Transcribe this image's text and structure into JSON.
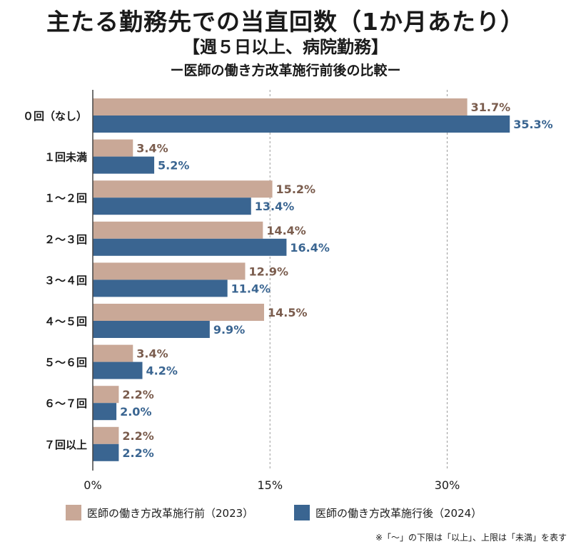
{
  "header": {
    "title": "主たる勤務先での当直回数（1か月あたり）",
    "subtitle": "【週５日以上、病院勤務】",
    "subsubtitle": "ー医師の働き方改革施行前後の比較ー"
  },
  "chart_data": {
    "type": "bar",
    "orientation": "horizontal",
    "categories": [
      "０回（なし）",
      "１回未満",
      "１〜２回",
      "２〜３回",
      "３〜４回",
      "４〜５回",
      "５〜６回",
      "６〜７回",
      "７回以上"
    ],
    "series": [
      {
        "name": "医師の働き方改革施行前（2023）",
        "color": "#c9a897",
        "label_color": "#7a5c4d",
        "values": [
          31.7,
          3.4,
          15.2,
          14.4,
          12.9,
          14.5,
          3.4,
          2.2,
          2.2
        ]
      },
      {
        "name": "医師の働き方改革施行後（2024）",
        "color": "#3a6591",
        "label_color": "#3a6591",
        "values": [
          35.3,
          5.2,
          13.4,
          16.4,
          11.4,
          9.9,
          4.2,
          2.0,
          2.2
        ]
      }
    ],
    "value_suffix": "%",
    "xlim": [
      0,
      40
    ],
    "ticks": [
      0,
      15,
      30
    ],
    "tick_labels": [
      "0%",
      "15%",
      "30%"
    ],
    "grid": "vertical dashed at 15 and 30"
  },
  "legend": {
    "before": "医師の働き方改革施行前（2023）",
    "after": "医師の働き方改革施行後（2024）",
    "before_color": "#c9a897",
    "after_color": "#3a6591"
  },
  "footnote": "※「〜」の下限は「以上」、上限は「未満」を表す"
}
